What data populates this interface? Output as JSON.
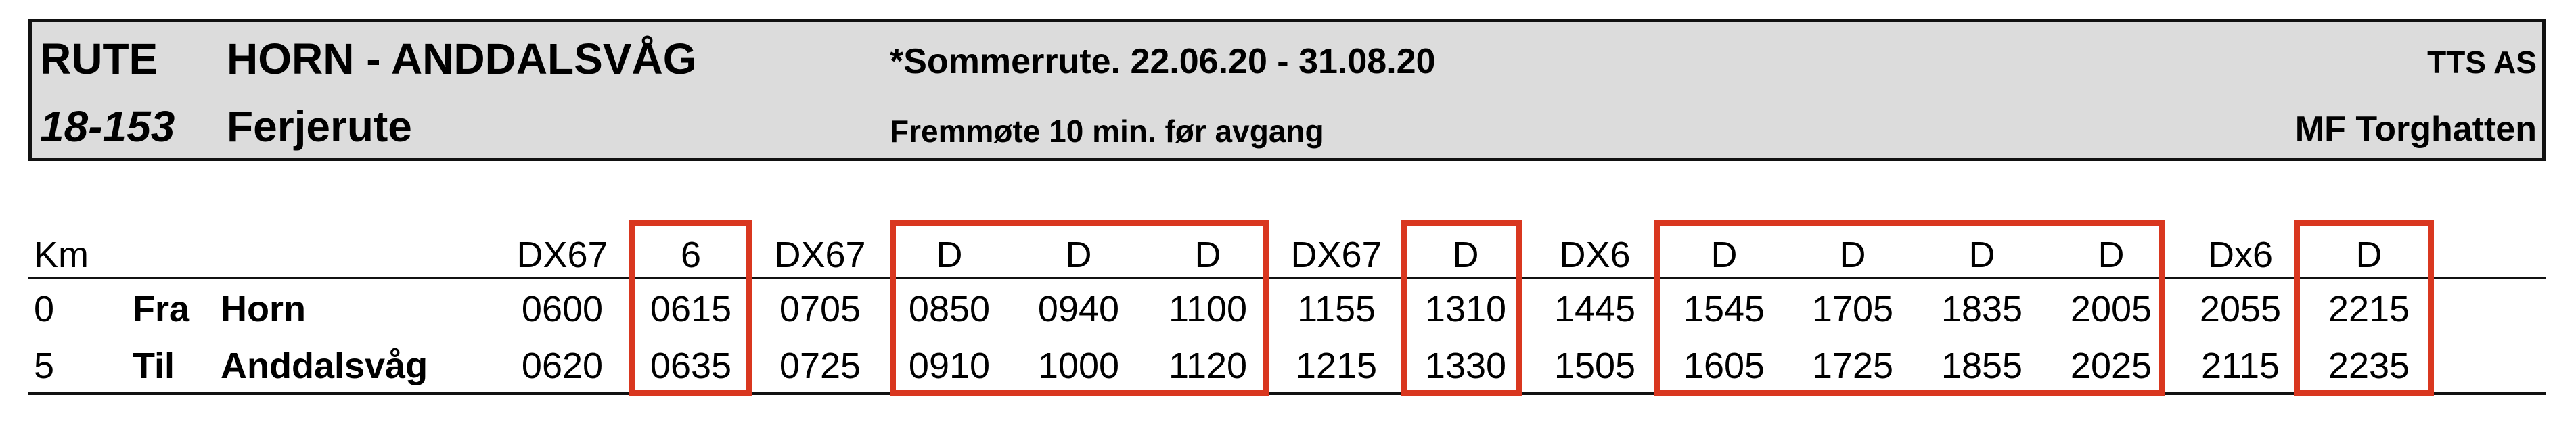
{
  "header": {
    "route_label": "RUTE",
    "route_name": "HORN - ANDDALSVÅG",
    "season": "*Sommerrute. 22.06.20 - 31.08.20",
    "company": "TTS AS",
    "route_number": "18-153",
    "route_type": "Ferjerute",
    "notice": "Fremmøte 10 min. før avgang",
    "vessel": "MF Torghatten"
  },
  "timetable": {
    "km_header": "Km",
    "days": [
      "DX67",
      "6",
      "DX67",
      "D",
      "D",
      "D",
      "DX67",
      "D",
      "DX6",
      "D",
      "D",
      "D",
      "D",
      "Dx6",
      "D"
    ],
    "rows": [
      {
        "km": "0",
        "dir": "Fra",
        "stop": "Horn",
        "times": [
          "0600",
          "0615",
          "0705",
          "0850",
          "0940",
          "1100",
          "1155",
          "1310",
          "1445",
          "1545",
          "1705",
          "1835",
          "2005",
          "2055",
          "2215"
        ]
      },
      {
        "km": "5",
        "dir": "Til",
        "stop": "Anddalsvåg",
        "times": [
          "0620",
          "0635",
          "0725",
          "0910",
          "1000",
          "1120",
          "1215",
          "1330",
          "1505",
          "1605",
          "1725",
          "1855",
          "2025",
          "2115",
          "2235"
        ]
      }
    ]
  },
  "colors": {
    "highlight": "#d9371f",
    "header_bg": "#dcdcdc"
  }
}
